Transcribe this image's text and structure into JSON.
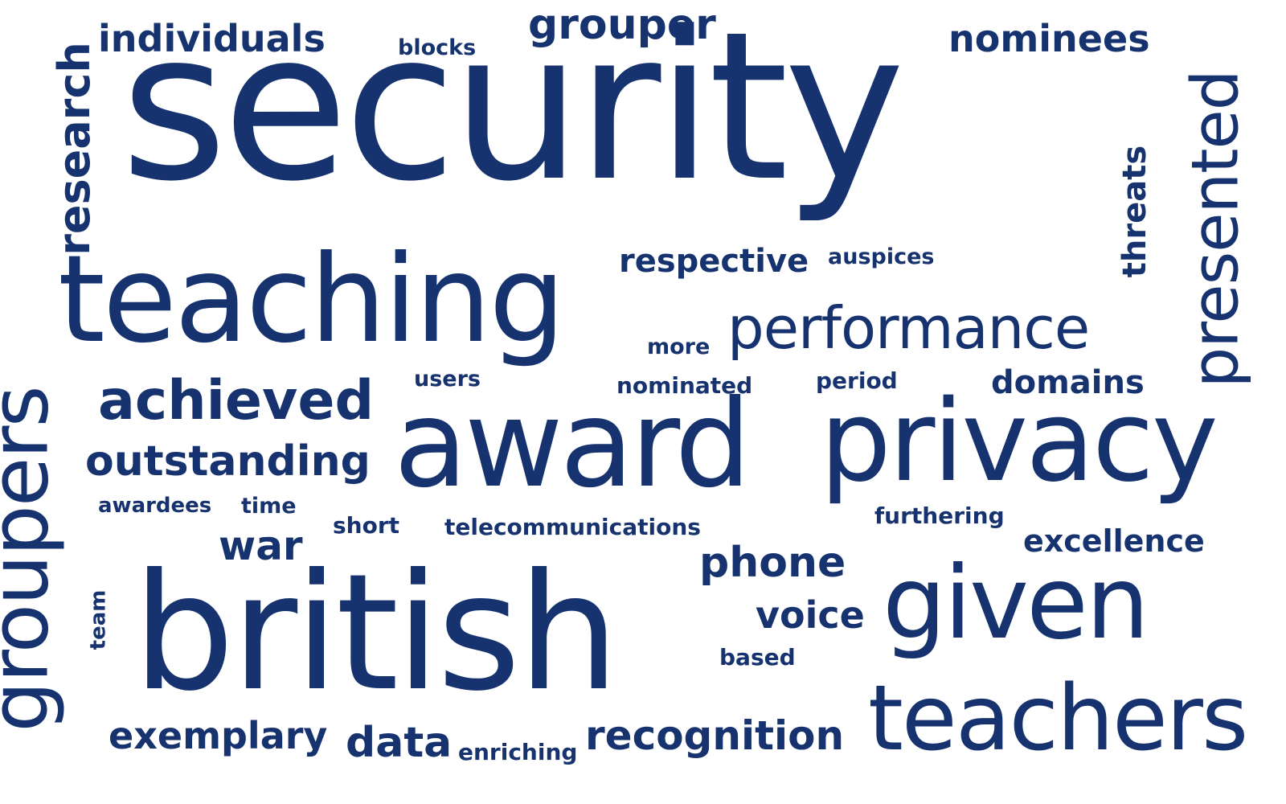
{
  "colors": {
    "text": "#17336f",
    "background": "#ffffff"
  },
  "words": {
    "security": "security",
    "teaching": "teaching",
    "british": "british",
    "award": "award",
    "privacy": "privacy",
    "given": "given",
    "teachers": "teachers",
    "performance": "performance",
    "achieved": "achieved",
    "outstanding": "outstanding",
    "individuals": "individuals",
    "grouper": "grouper",
    "nominees": "nominees",
    "respective": "respective",
    "domains": "domains",
    "recognition": "recognition",
    "exemplary": "exemplary",
    "data": "data",
    "war": "war",
    "phone": "phone",
    "voice": "voice",
    "excellence": "excellence",
    "furthering": "furthering",
    "telecommunications": "telecommunications",
    "auspices": "auspices",
    "more": "more",
    "nominated": "nominated",
    "period": "period",
    "users": "users",
    "awardees": "awardees",
    "time": "time",
    "short": "short",
    "blocks": "blocks",
    "based": "based",
    "enriching": "enriching",
    "research": "research",
    "groupers": "groupers",
    "team": "team",
    "threats": "threats",
    "presented": "presented"
  }
}
